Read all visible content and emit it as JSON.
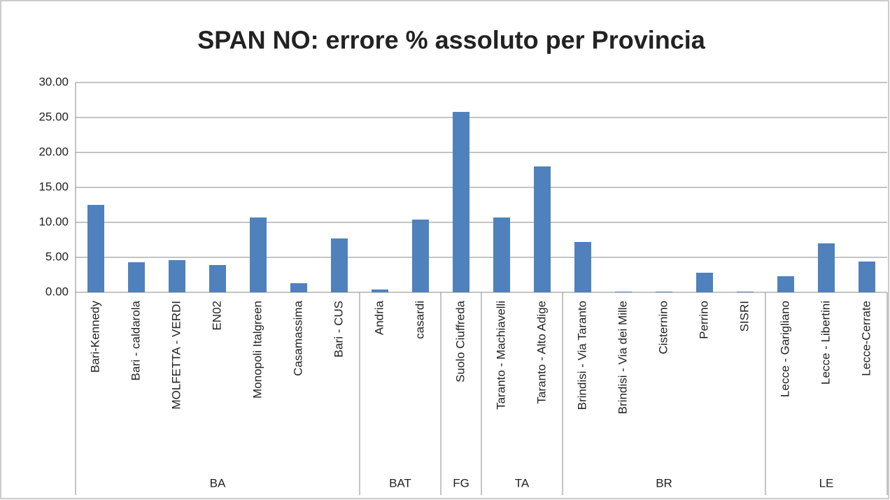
{
  "chart_data": {
    "type": "bar",
    "title": "SPAN NO: errore % assoluto per Provincia",
    "color": "#4f81bd",
    "grid": true,
    "ylim": [
      0,
      30
    ],
    "yticks": [
      {
        "value": 0,
        "label": "0.00"
      },
      {
        "value": 5,
        "label": "5.00"
      },
      {
        "value": 10,
        "label": "10.00"
      },
      {
        "value": 15,
        "label": "15.00"
      },
      {
        "value": 20,
        "label": "20.00"
      },
      {
        "value": 25,
        "label": "25.00"
      },
      {
        "value": 30,
        "label": "30.00"
      }
    ],
    "groups": [
      {
        "name": "BA",
        "categories": [
          "Bari-Kennedy",
          "Bari - caldarola",
          "MOLFETTA - VERDI",
          "EN02",
          "Monopoli Italgreen",
          "Casamassima",
          "Bari - CUS"
        ],
        "values": [
          12.5,
          4.3,
          4.6,
          3.9,
          10.7,
          1.3,
          7.7
        ]
      },
      {
        "name": "BAT",
        "categories": [
          "Andria",
          "casardi"
        ],
        "values": [
          0.4,
          10.4
        ]
      },
      {
        "name": "FG",
        "categories": [
          "Suolo Ciuffreda"
        ],
        "values": [
          25.8
        ]
      },
      {
        "name": "TA",
        "categories": [
          "Taranto - Machiavelli",
          "Taranto - Alto Adige"
        ],
        "values": [
          10.7,
          18.0
        ]
      },
      {
        "name": "BR",
        "categories": [
          "Brindisi - Via Taranto",
          "Brindisi - Via dei Mille",
          "Cisternino",
          "Perrino",
          "SISRI"
        ],
        "values": [
          7.2,
          0.1,
          0.1,
          2.8,
          0.1
        ]
      },
      {
        "name": "LE",
        "categories": [
          "Lecce - Garigliano",
          "Lecce - Libertini",
          "Lecce-Cerrate"
        ],
        "values": [
          2.3,
          7.0,
          4.4
        ]
      }
    ]
  }
}
